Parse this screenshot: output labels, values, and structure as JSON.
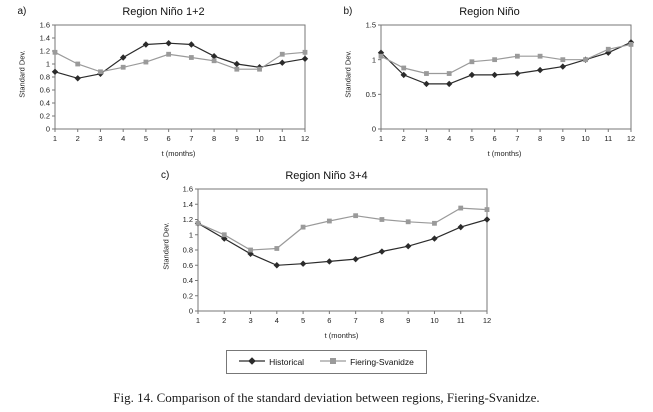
{
  "figure": {
    "caption": "Fig. 14. Comparison of the standard deviation between regions, Fiering-Svanidze."
  },
  "legend": {
    "position": "below-figure",
    "items": [
      {
        "label": "Historical",
        "marker": "diamond-icon",
        "color": "#2b2b2b"
      },
      {
        "label": "Fiering-Svanidze",
        "marker": "square-icon",
        "color": "#9a9a9a"
      }
    ]
  },
  "chart_data": [
    {
      "type": "line",
      "panel_label": "a)",
      "title": "Region Niño 1+2",
      "xlabel": "t (months)",
      "ylabel": "Standard Dev.",
      "grid": false,
      "x": [
        1,
        2,
        3,
        4,
        5,
        6,
        7,
        8,
        9,
        10,
        11,
        12
      ],
      "ylim": [
        0,
        1.6
      ],
      "yticks": [
        0,
        0.2,
        0.4,
        0.6,
        0.8,
        1,
        1.2,
        1.4,
        1.6
      ],
      "series": [
        {
          "name": "Historical",
          "color": "#2b2b2b",
          "marker": "diamond",
          "values": [
            0.88,
            0.78,
            0.85,
            1.1,
            1.3,
            1.32,
            1.3,
            1.12,
            1.0,
            0.95,
            1.02,
            1.08
          ]
        },
        {
          "name": "Fiering-Svanidze",
          "color": "#9a9a9a",
          "marker": "square",
          "values": [
            1.18,
            1.0,
            0.88,
            0.95,
            1.03,
            1.15,
            1.1,
            1.05,
            0.92,
            0.92,
            1.15,
            1.18
          ]
        }
      ]
    },
    {
      "type": "line",
      "panel_label": "b)",
      "title": "Region Niño",
      "xlabel": "t (months)",
      "ylabel": "Standard Dev.",
      "grid": false,
      "x": [
        1,
        2,
        3,
        4,
        5,
        6,
        7,
        8,
        9,
        10,
        11,
        12
      ],
      "ylim": [
        0,
        1.5
      ],
      "yticks": [
        0,
        0.5,
        1,
        1.5
      ],
      "series": [
        {
          "name": "Historical",
          "color": "#2b2b2b",
          "marker": "diamond",
          "values": [
            1.1,
            0.78,
            0.65,
            0.65,
            0.78,
            0.78,
            0.8,
            0.85,
            0.9,
            1.0,
            1.1,
            1.25
          ]
        },
        {
          "name": "Fiering-Svanidze",
          "color": "#9a9a9a",
          "marker": "square",
          "values": [
            1.05,
            0.88,
            0.8,
            0.8,
            0.97,
            1.0,
            1.05,
            1.05,
            1.0,
            1.0,
            1.15,
            1.22
          ]
        }
      ]
    },
    {
      "type": "line",
      "panel_label": "c)",
      "title": "Region Niño 3+4",
      "xlabel": "t (months)",
      "ylabel": "Standard Dev.",
      "grid": false,
      "x": [
        1,
        2,
        3,
        4,
        5,
        6,
        7,
        8,
        9,
        10,
        11,
        12
      ],
      "ylim": [
        0,
        1.6
      ],
      "yticks": [
        0,
        0.2,
        0.4,
        0.6,
        0.8,
        1,
        1.2,
        1.4,
        1.6
      ],
      "series": [
        {
          "name": "Historical",
          "color": "#2b2b2b",
          "marker": "diamond",
          "values": [
            1.15,
            0.95,
            0.75,
            0.6,
            0.62,
            0.65,
            0.68,
            0.78,
            0.85,
            0.95,
            1.1,
            1.2
          ]
        },
        {
          "name": "Fiering-Svanidze",
          "color": "#9a9a9a",
          "marker": "square",
          "values": [
            1.15,
            1.0,
            0.8,
            0.82,
            1.1,
            1.18,
            1.25,
            1.2,
            1.17,
            1.15,
            1.35,
            1.33
          ]
        }
      ]
    }
  ]
}
